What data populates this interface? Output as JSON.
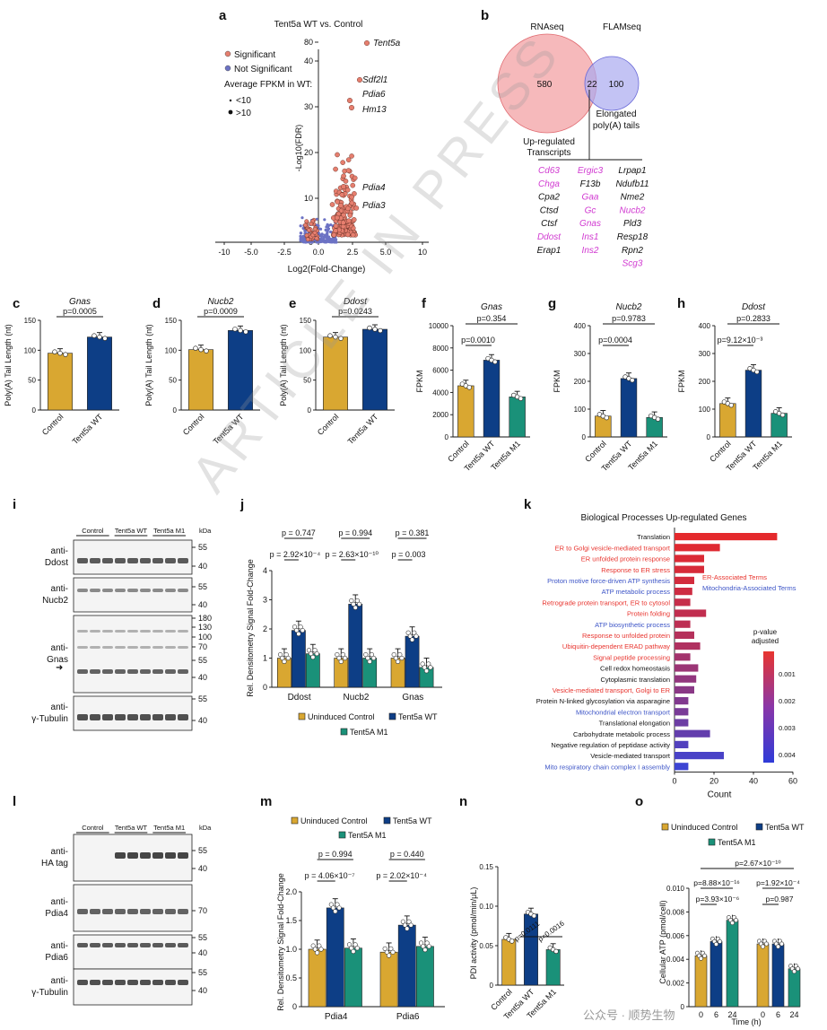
{
  "colors": {
    "ctrl": "#D9A731",
    "wt": "#0D3E86",
    "m1": "#1A9179",
    "sig": "#E67E6E",
    "nonsig": "#6C72C4",
    "venn_rna": "#F3A1A4",
    "venn_flam": "#A9A9F0",
    "er": "#E8352F",
    "mito": "#3D55C7"
  },
  "panel_letters": [
    "a",
    "b",
    "c",
    "d",
    "e",
    "f",
    "g",
    "h",
    "i",
    "j",
    "k",
    "l",
    "m",
    "n",
    "o"
  ],
  "a": {
    "title": "Tent5a WT vs. Control",
    "legend_sig": "Significant",
    "legend_nonsig": "Not Significant",
    "legend_fpkm": "Average FPKM in WT:",
    "legend_lt": "<10",
    "legend_gt": ">10",
    "ylabel": "-Log10(FDR)",
    "xlabel": "Log2(Fold-Change)",
    "genes": [
      "Tent5a",
      "Sdf2l1",
      "Pdia6",
      "Hm13",
      "Pdia4",
      "Pdia3"
    ],
    "yticks": [
      "80",
      "40",
      "30",
      "20",
      "10",
      "0"
    ],
    "xticks": [
      "-10",
      "-5.0",
      "-2.5",
      "0.0",
      "2.5",
      "5.0",
      "10"
    ]
  },
  "b": {
    "rna": "RNAseq",
    "flam": "FLAMseq",
    "n_rna": "580",
    "n_both": "22",
    "n_flam": "100",
    "up1": "Up-regulated",
    "up2": "Transcripts",
    "el1": "Elongated",
    "el2": "poly(A) tails",
    "col1": [
      {
        "t": "Cd63",
        "m": true
      },
      {
        "t": "Chga",
        "m": true
      },
      {
        "t": "Cpa2",
        "m": false
      },
      {
        "t": "Ctsd",
        "m": false
      },
      {
        "t": "Ctsf",
        "m": false
      },
      {
        "t": "Ddost",
        "m": true
      },
      {
        "t": "Erap1",
        "m": false
      }
    ],
    "col2": [
      {
        "t": "Ergic3",
        "m": true
      },
      {
        "t": "F13b",
        "m": false
      },
      {
        "t": "Gaa",
        "m": true
      },
      {
        "t": "Gc",
        "m": true
      },
      {
        "t": "Gnas",
        "m": true
      },
      {
        "t": "Ins1",
        "m": true
      },
      {
        "t": "Ins2",
        "m": true
      }
    ],
    "col3": [
      {
        "t": "Lrpap1",
        "m": false
      },
      {
        "t": "Ndufb11",
        "m": false
      },
      {
        "t": "Nme2",
        "m": false
      },
      {
        "t": "Nucb2",
        "m": true
      },
      {
        "t": "Pld3",
        "m": false
      },
      {
        "t": "Resp18",
        "m": false
      },
      {
        "t": "Rpn2",
        "m": false
      },
      {
        "t": "Scg3",
        "m": true
      }
    ]
  },
  "polya_ylabel": "Poly(A) Tail Length (nt)",
  "fpkm_ylabel": "FPKM",
  "labels": {
    "control": "Control",
    "wt": "Tent5a WT",
    "m1": "Tent5a M1",
    "uninduced": "Uninduced Control",
    "wt2": "Tent5a WT",
    "m1b": "Tent5A M1",
    "kda": "kDa"
  },
  "chart_data": [
    {
      "panel": "c",
      "type": "bar",
      "title": "Gnas",
      "categories": [
        "Control",
        "Tent5a WT"
      ],
      "values": [
        95,
        122
      ],
      "ylim": [
        0,
        150
      ],
      "yticks": [
        "0",
        "50",
        "100",
        "150"
      ],
      "p": [
        "p=0.0005"
      ]
    },
    {
      "panel": "d",
      "type": "bar",
      "title": "Nucb2",
      "categories": [
        "Control",
        "Tent5a WT"
      ],
      "values": [
        101,
        133
      ],
      "ylim": [
        0,
        150
      ],
      "yticks": [
        "0",
        "50",
        "100",
        "150"
      ],
      "p": [
        "p=0.0009"
      ]
    },
    {
      "panel": "e",
      "type": "bar",
      "title": "Ddost",
      "categories": [
        "Control",
        "Tent5a WT"
      ],
      "values": [
        122,
        135
      ],
      "ylim": [
        0,
        150
      ],
      "yticks": [
        "0",
        "50",
        "100",
        "150"
      ],
      "p": [
        "p=0.0243"
      ]
    },
    {
      "panel": "f",
      "type": "bar",
      "title": "Gnas",
      "categories": [
        "Control",
        "Tent5a WT",
        "Tent5a M1"
      ],
      "values": [
        4600,
        6900,
        3600
      ],
      "ylim": [
        0,
        10000
      ],
      "yticks": [
        "0",
        "2000",
        "4000",
        "6000",
        "8000",
        "10000"
      ],
      "p": [
        "p=0.354",
        "p=0.0010"
      ]
    },
    {
      "panel": "g",
      "type": "bar",
      "title": "Nucb2",
      "categories": [
        "Control",
        "Tent5a WT",
        "Tent5a M1"
      ],
      "values": [
        75,
        210,
        70
      ],
      "ylim": [
        0,
        400
      ],
      "yticks": [
        "0",
        "100",
        "200",
        "300",
        "400"
      ],
      "p": [
        "p=0.9783",
        "p=0.0004"
      ]
    },
    {
      "panel": "h",
      "type": "bar",
      "title": "Ddost",
      "categories": [
        "Control",
        "Tent5a WT",
        "Tent5a M1"
      ],
      "values": [
        120,
        240,
        85
      ],
      "ylim": [
        0,
        400
      ],
      "yticks": [
        "0",
        "100",
        "200",
        "300",
        "400"
      ],
      "p": [
        "p=0.2833",
        "p=9.12×10⁻³"
      ]
    },
    {
      "panel": "j",
      "type": "bar",
      "ylabel": "Rel. Densitometry Signal Fold-Change",
      "categories": [
        "Ddost",
        "Nucb2",
        "Gnas"
      ],
      "series": [
        {
          "name": "Uninduced Control",
          "values": [
            1.0,
            1.0,
            1.0
          ]
        },
        {
          "name": "Tent5a WT",
          "values": [
            1.95,
            2.85,
            1.75
          ]
        },
        {
          "name": "Tent5A M1",
          "values": [
            1.15,
            1.0,
            0.68
          ]
        }
      ],
      "ylim": [
        0,
        4
      ],
      "yticks": [
        "0",
        "1",
        "2",
        "3",
        "4"
      ],
      "p_top": [
        "p = 0.747",
        "p = 0.994",
        "p = 0.381"
      ],
      "p_low": [
        "p = 2.92×10⁻⁴",
        "p = 2.63×10⁻¹⁰",
        "p = 0.003"
      ]
    },
    {
      "panel": "k",
      "type": "bar",
      "title": "Biological Processes Up-regulated Genes",
      "xlabel": "Count",
      "xlim": [
        0,
        60
      ],
      "xticks": [
        "0",
        "20",
        "40",
        "60"
      ],
      "legend_title": "p-value adjusted",
      "legend_ticks": [
        "0.001",
        "0.002",
        "0.003",
        "0.004"
      ],
      "legend_er": "ER-Associated Terms",
      "legend_mito": "Mitochondria-Associated Terms",
      "categories": [
        "Translation",
        "ER to Golgi vesicle-mediated transport",
        "ER unfolded protein response",
        "Response to ER stress",
        "Proton motive force-driven ATP synthesis",
        "ATP metabolic process",
        "Retrograde protein transport, ER to cytosol",
        "Protein folding",
        "ATP biosynthetic process",
        "Response to unfolded protein",
        "Ubiquitin-dependent ERAD pathway",
        "Signal peptide processing",
        "Cell redox homeostasis",
        "Cytoplasmic translation",
        "Vesicle-mediated transport, Golgi to ER",
        "Protein N-linked glycosylation via asparagine",
        "Mitochondrial electron transport",
        "Translational elongation",
        "Carbohydrate metabolic process",
        "Negative regulation of peptidase activity",
        "Vesicle-mediated transport",
        "Mito respiratory chain complex I assembly"
      ],
      "kind": [
        "k",
        "er",
        "er",
        "er",
        "mito",
        "mito",
        "er",
        "er",
        "mito",
        "er",
        "er",
        "er",
        "k",
        "k",
        "er",
        "k",
        "mito",
        "k",
        "k",
        "k",
        "k",
        "mito"
      ],
      "values": [
        52,
        23,
        15,
        15,
        10,
        9,
        8,
        16,
        8,
        10,
        13,
        8,
        12,
        11,
        10,
        7,
        7,
        7,
        18,
        7,
        25,
        7
      ],
      "padj": [
        0.0001,
        0.0002,
        0.0003,
        0.0004,
        0.0005,
        0.0006,
        0.0008,
        0.0009,
        0.001,
        0.0012,
        0.0013,
        0.0016,
        0.0018,
        0.002,
        0.0022,
        0.0024,
        0.0026,
        0.0029,
        0.0031,
        0.0035,
        0.0037,
        0.004
      ]
    },
    {
      "panel": "m",
      "type": "bar",
      "ylabel": "Rel. Densitometry Signal Fold-Change",
      "categories": [
        "Pdia4",
        "Pdia6"
      ],
      "series": [
        {
          "name": "Uninduced Control",
          "values": [
            1.0,
            0.95
          ]
        },
        {
          "name": "Tent5a WT",
          "values": [
            1.72,
            1.42
          ]
        },
        {
          "name": "Tent5A M1",
          "values": [
            1.02,
            1.05
          ]
        }
      ],
      "ylim": [
        0,
        2
      ],
      "yticks": [
        "0",
        "0.5",
        "1.0",
        "1.5",
        "2.0"
      ],
      "p_top": [
        "p = 0.994",
        "p = 0.440"
      ],
      "p_low": [
        "p = 4.06×10⁻⁷",
        "p = 2.02×10⁻⁴"
      ]
    },
    {
      "panel": "n",
      "type": "bar",
      "ylabel": "PDI activity (pmol/min/μL)",
      "categories": [
        "Control",
        "Tent5a WT",
        "Tent5a M1"
      ],
      "values": [
        0.058,
        0.09,
        0.045
      ],
      "ylim": [
        0,
        0.15
      ],
      "yticks": [
        "0",
        "0.05",
        "0.10",
        "0.15"
      ],
      "p": [
        "p=0.0111",
        "p=0.0016"
      ]
    },
    {
      "panel": "o",
      "type": "bar",
      "ylabel": "Cellular ATP (pmol/cell)",
      "xlabel": "Time (h)",
      "categories": [
        "0",
        "6",
        "24",
        "0",
        "6",
        "24"
      ],
      "values": [
        0.0043,
        0.0055,
        0.0073,
        0.0053,
        0.0053,
        0.0032
      ],
      "ylim": [
        0,
        0.01
      ],
      "yticks": [
        "0",
        "0.002",
        "0.004",
        "0.006",
        "0.008",
        "0.010"
      ],
      "p": [
        "p=2.67×10⁻¹⁰",
        "p=8.88×10⁻¹⁶",
        "p=1.92×10⁻⁴",
        "p=3.93×10⁻⁶",
        "p=0.987"
      ]
    }
  ],
  "blots_i": {
    "groups": [
      "Control",
      "Tent5a WT",
      "Tent5a M1"
    ],
    "abs": [
      "anti-\nDdost",
      "anti-\nNucb2",
      "anti-\nGnas",
      "anti-\nγ-Tubulin"
    ],
    "ticks": [
      [
        "55",
        "40"
      ],
      [
        "55",
        "40"
      ],
      [
        "180",
        "130",
        "100",
        "70",
        "55",
        "40"
      ],
      [
        "55",
        "40"
      ]
    ]
  },
  "blots_l": {
    "groups": [
      "Control",
      "Tent5a WT",
      "Tent5a M1"
    ],
    "abs": [
      "anti-\nHA tag",
      "anti-\nPdia4",
      "anti-\nPdia6",
      "anti-\nγ-Tubulin"
    ],
    "ticks": [
      [
        "55",
        "40"
      ],
      [
        "70"
      ],
      [
        "55",
        "40"
      ],
      [
        "55",
        "40"
      ]
    ]
  },
  "watermark": "ARTICLE IN PRESS",
  "footer": "公众号 · 顺势生物"
}
